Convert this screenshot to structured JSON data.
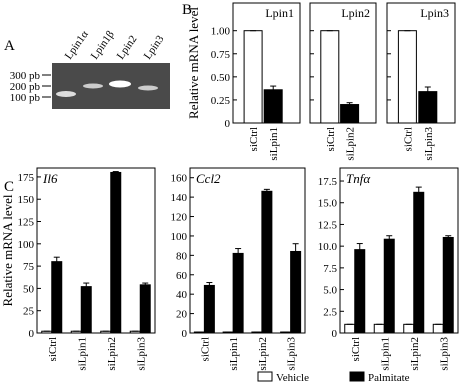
{
  "panel_labels": [
    "A",
    "B",
    "C"
  ],
  "gel": {
    "lanes": [
      "Lpin1α",
      "Lpin1β",
      "Lpin2",
      "Lpin3"
    ],
    "markers": [
      "300 pb",
      "200 pb",
      "100 pb"
    ]
  },
  "chart_data": [
    {
      "type": "bar",
      "title": "Lpin1",
      "ylabel": "Relative mRNA level",
      "categories": [
        "siCtrl",
        "siLpin1"
      ],
      "values": [
        1,
        0.36
      ],
      "errors": [
        0,
        0.04
      ],
      "colors": [
        "#ffffff",
        "#000000"
      ],
      "ylim": [
        0,
        1.3
      ],
      "yticks": [
        0,
        0.25,
        {
          "value": 0.5,
          "label": "0.50"
        },
        0.75,
        {
          "value": 1,
          "label": "1.00"
        }
      ]
    },
    {
      "type": "bar",
      "title": "Lpin2",
      "categories": [
        "siCtrl",
        "siLpin2"
      ],
      "values": [
        1,
        0.2
      ],
      "errors": [
        0,
        0.02
      ],
      "colors": [
        "#ffffff",
        "#000000"
      ],
      "ylim": [
        0,
        1.3
      ],
      "yticks": [
        0,
        0.25,
        0.5,
        0.75,
        1
      ]
    },
    {
      "type": "bar",
      "title": "Lpin3",
      "categories": [
        "siCtrl",
        "siLpin3"
      ],
      "values": [
        1,
        0.34
      ],
      "errors": [
        0,
        0.05
      ],
      "colors": [
        "#ffffff",
        "#000000"
      ],
      "ylim": [
        0,
        1.3
      ],
      "yticks": [
        0,
        0.25,
        0.5,
        0.75,
        1
      ]
    },
    {
      "type": "grouped_bar",
      "title": "Il6",
      "ylabel": "Relative mRNA level",
      "categories": [
        "siCtrl",
        "siLpin1",
        "siLpin2",
        "siLpin3"
      ],
      "series": [
        {
          "name": "Vehicle",
          "color": "#ffffff",
          "values": [
            2,
            2,
            2,
            2
          ],
          "errors": [
            0,
            0,
            0,
            0
          ]
        },
        {
          "name": "Palmitate",
          "color": "#000000",
          "values": [
            80,
            52,
            180,
            54
          ],
          "errors": [
            5,
            4,
            1,
            2
          ]
        }
      ],
      "ylim": [
        0,
        185
      ],
      "yticks": [
        0,
        25,
        50,
        75,
        100,
        125,
        150,
        175
      ]
    },
    {
      "type": "grouped_bar",
      "title": "Ccl2",
      "categories": [
        "siCtrl",
        "siLpin1",
        "siLpin2",
        "siLpin3"
      ],
      "series": [
        {
          "name": "Vehicle",
          "color": "#ffffff",
          "values": [
            1,
            1,
            1,
            1
          ],
          "errors": [
            0,
            0,
            0,
            0
          ]
        },
        {
          "name": "Palmitate",
          "color": "#000000",
          "values": [
            49,
            82,
            146,
            84
          ],
          "errors": [
            3,
            5,
            2,
            8
          ]
        }
      ],
      "ylim": [
        0,
        170
      ],
      "yticks": [
        0,
        20,
        40,
        60,
        80,
        100,
        120,
        140,
        160
      ]
    },
    {
      "type": "grouped_bar",
      "title": "Tnfα",
      "categories": [
        "siCtrl",
        "siLpin1",
        "siLpin2",
        "siLpin3"
      ],
      "series": [
        {
          "name": "Vehicle",
          "color": "#ffffff",
          "values": [
            1,
            1,
            1,
            1
          ],
          "errors": [
            0,
            0,
            0,
            0
          ]
        },
        {
          "name": "Palmitate",
          "color": "#000000",
          "values": [
            9.6,
            10.8,
            16.2,
            11.0
          ],
          "errors": [
            0.7,
            0.4,
            0.6,
            0.2
          ]
        }
      ],
      "ylim": [
        0,
        19
      ],
      "yticks": [
        0,
        2.5,
        {
          "value": 5,
          "label": "5.0"
        },
        7.5,
        {
          "value": 10,
          "label": "10.0"
        },
        12.5,
        {
          "value": 15,
          "label": "15.0"
        },
        17.5
      ]
    }
  ]
}
